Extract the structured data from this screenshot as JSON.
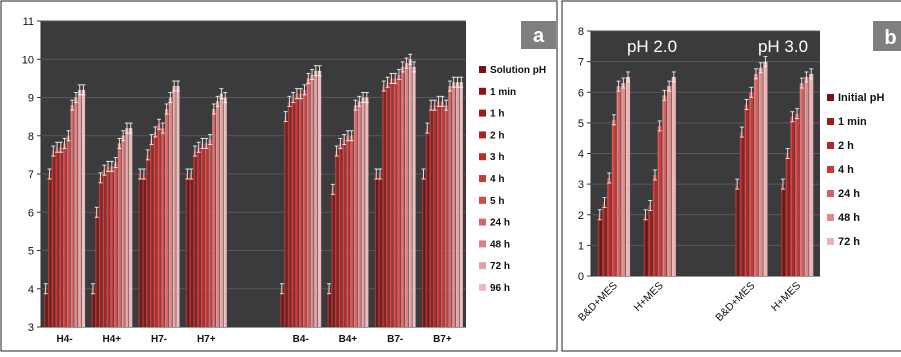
{
  "chart_data": [
    {
      "panel": "a",
      "type": "bar",
      "categories": [
        "H4-",
        "H4+",
        "H7-",
        "H7+",
        "",
        "B4-",
        "B4+",
        "B7-",
        "B7+"
      ],
      "ylim": [
        3,
        11
      ],
      "yticks": [
        3,
        4,
        5,
        6,
        7,
        8,
        9,
        10,
        11
      ],
      "legend_position": "right",
      "grid": true,
      "series": [
        {
          "name": "Solution pH",
          "values": [
            4.0,
            4.0,
            7.0,
            7.0,
            null,
            4.0,
            4.0,
            7.0,
            7.0
          ]
        },
        {
          "name": "1 min",
          "values": [
            7.0,
            6.0,
            7.0,
            7.0,
            null,
            8.5,
            6.6,
            7.0,
            8.2
          ]
        },
        {
          "name": "1 h",
          "values": [
            7.6,
            6.9,
            7.5,
            7.6,
            null,
            8.9,
            7.6,
            9.3,
            8.8
          ]
        },
        {
          "name": "2 h",
          "values": [
            7.7,
            7.1,
            7.9,
            7.7,
            null,
            9.0,
            7.8,
            9.4,
            8.8
          ]
        },
        {
          "name": "3  h",
          "values": [
            7.7,
            7.2,
            8.1,
            7.8,
            null,
            9.1,
            7.9,
            9.5,
            8.9
          ]
        },
        {
          "name": "4 h",
          "values": [
            7.8,
            7.2,
            8.3,
            7.8,
            null,
            9.1,
            8.0,
            9.5,
            8.9
          ]
        },
        {
          "name": "5 h",
          "values": [
            8.0,
            7.3,
            8.2,
            7.9,
            null,
            9.2,
            8.0,
            9.6,
            8.8
          ]
        },
        {
          "name": "24 h",
          "values": [
            8.8,
            7.8,
            8.7,
            8.7,
            null,
            9.5,
            8.8,
            9.8,
            9.3
          ]
        },
        {
          "name": "48 h",
          "values": [
            9.0,
            8.0,
            9.0,
            8.9,
            null,
            9.6,
            8.9,
            9.9,
            9.4
          ]
        },
        {
          "name": "72 h",
          "values": [
            9.2,
            8.2,
            9.3,
            9.1,
            null,
            9.7,
            9.0,
            10.0,
            9.4
          ]
        },
        {
          "name": "96 h",
          "values": [
            9.2,
            8.2,
            9.3,
            9.0,
            null,
            9.7,
            9.0,
            9.8,
            9.4
          ]
        }
      ]
    },
    {
      "panel": "b",
      "type": "bar",
      "categories": [
        "B&D+MES",
        "H+MES",
        "",
        "B&D+MES",
        "H+MES"
      ],
      "ylim": [
        0,
        8
      ],
      "yticks": [
        0,
        1,
        2,
        3,
        4,
        5,
        6,
        7,
        8
      ],
      "legend_position": "right",
      "grid": true,
      "annotations": [
        "pH 2.0",
        "pH 3.0"
      ],
      "series": [
        {
          "name": "Initial pH",
          "values": [
            2.0,
            2.0,
            null,
            3.0,
            3.0
          ]
        },
        {
          "name": "1 min",
          "values": [
            2.4,
            2.3,
            null,
            4.7,
            4.0
          ]
        },
        {
          "name": "2 h",
          "values": [
            3.2,
            3.3,
            null,
            5.6,
            5.2
          ]
        },
        {
          "name": "4 h",
          "values": [
            5.1,
            4.9,
            null,
            6.0,
            5.3
          ]
        },
        {
          "name": "24 h",
          "values": [
            6.2,
            5.9,
            null,
            6.6,
            6.3
          ]
        },
        {
          "name": "48 h",
          "values": [
            6.3,
            6.2,
            null,
            6.8,
            6.5
          ]
        },
        {
          "name": "72 h",
          "values": [
            6.5,
            6.5,
            null,
            7.0,
            6.6
          ]
        }
      ]
    }
  ],
  "panel_a_label": "a",
  "panel_b_label": "b",
  "colors": {
    "plot_bg": "#3b3b3d",
    "grid": "#5a5a5c",
    "series_a": [
      "#7a1111",
      "#8b1414",
      "#9c1b1b",
      "#ad2323",
      "#bb2c2c",
      "#c73a3a",
      "#d04b4b",
      "#d76565",
      "#dd8282",
      "#e4a0a0",
      "#ebbbbb"
    ],
    "series_b": [
      "#7a1111",
      "#9c1b1b",
      "#b32828",
      "#c73a3a",
      "#d56060",
      "#df8a8a",
      "#e9b3b3"
    ]
  }
}
